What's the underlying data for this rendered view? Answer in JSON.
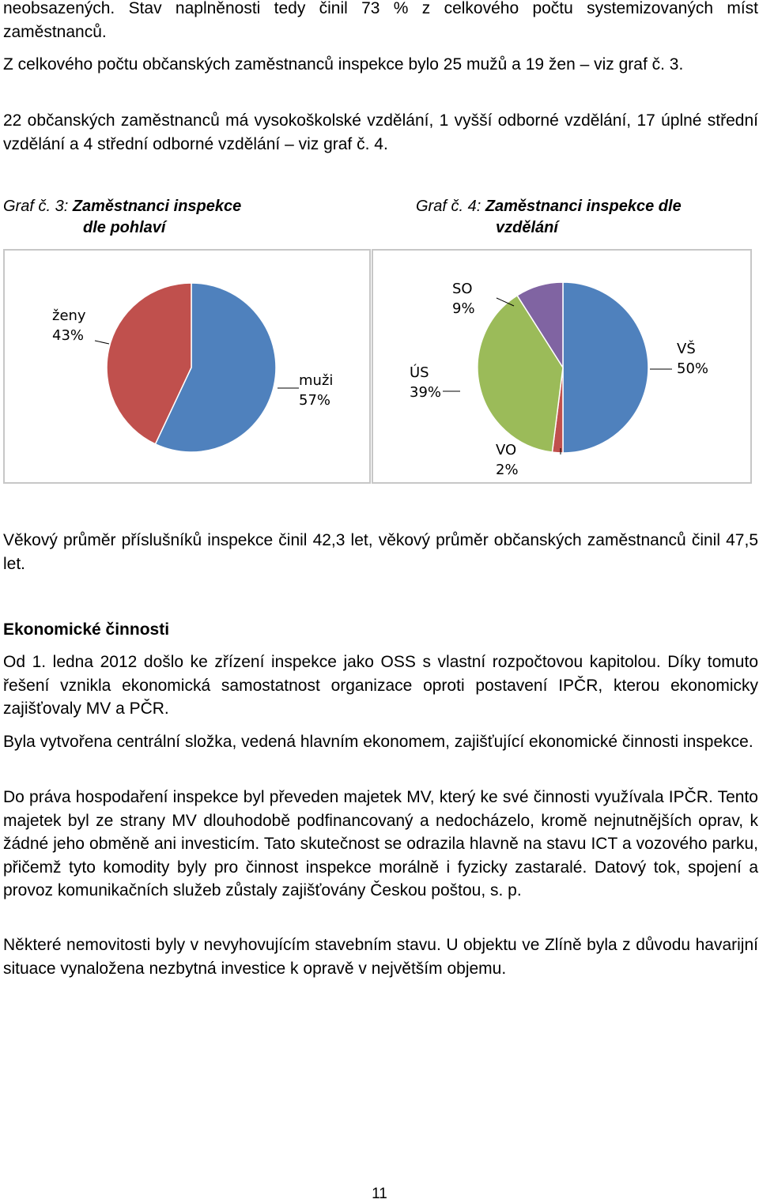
{
  "paragraphs": {
    "p1": "neobsazených. Stav naplněnosti tedy činil 73 % z celkového počtu systemizovaných míst zaměstnanců.",
    "p2": "Z celkového počtu občanských zaměstnanců inspekce bylo 25 mužů a 19 žen – viz graf č. 3.",
    "p3": "22 občanských zaměstnanců má vysokoškolské vzdělání, 1 vyšší odborné vzdělání, 17 úplné střední vzdělání a 4 střední odborné vzdělání – viz graf č. 4.",
    "p4": "Věkový průměr příslušníků inspekce činil 42,3 let, věkový průměr občanských zaměstnanců činil 47,5 let.",
    "section_heading": "Ekonomické činnosti",
    "p5": "Od 1. ledna 2012 došlo ke zřízení inspekce jako OSS s vlastní rozpočtovou kapitolou. Díky tomuto řešení vznikla ekonomická samostatnost organizace oproti postavení IPČR, kterou ekonomicky zajišťovaly MV a PČR.",
    "p6": "Byla vytvořena centrální složka, vedená hlavním ekonomem, zajišťující ekonomické činnosti inspekce.",
    "p7": "Do práva hospodaření inspekce byl převeden majetek MV, který ke své činnosti využívala IPČR. Tento majetek byl ze strany MV dlouhodobě podfinancovaný a nedocházelo, kromě nejnutnějších oprav, k žádné jeho obměně ani investicím. Tato skutečnost se odrazila hlavně na stavu ICT a vozového parku, přičemž tyto komodity byly pro činnost inspekce morálně i fyzicky zastaralé. Datový tok, spojení a provoz komunikačních služeb zůstaly zajišťovány Českou poštou, s. p.",
    "p8": "Některé nemovitosti byly v nevyhovujícím stavebním stavu. U objektu ve Zlíně byla z důvodu havarijní situace vynaložena nezbytná investice k opravě v největším objemu."
  },
  "captions": {
    "graf3_label": "Graf č. 3:",
    "graf3_title_line1": "Zaměstnanci inspekce",
    "graf3_title_line2": "dle pohlaví",
    "graf4_label": "Graf č. 4:",
    "graf4_title_line1": "Zaměstnanci inspekce dle",
    "graf4_title_line2": "vzdělání"
  },
  "chart_data": [
    {
      "type": "pie",
      "title": "Zaměstnanci inspekce dle pohlaví",
      "categories": [
        "muži",
        "ženy"
      ],
      "values": [
        57,
        43
      ],
      "labels": [
        "57%",
        "43%"
      ],
      "colors": [
        "#4f81bd",
        "#c0504d"
      ],
      "legend": "none"
    },
    {
      "type": "pie",
      "title": "Zaměstnanci inspekce dle vzdělání",
      "categories": [
        "VŠ",
        "VO",
        "ÚS",
        "SO"
      ],
      "values": [
        50,
        2,
        39,
        9
      ],
      "labels": [
        "50%",
        "2%",
        "39%",
        "9%"
      ],
      "colors": [
        "#4f81bd",
        "#c0504d",
        "#9bbb59",
        "#8064a2"
      ],
      "legend": "none"
    }
  ],
  "page_number": "11"
}
